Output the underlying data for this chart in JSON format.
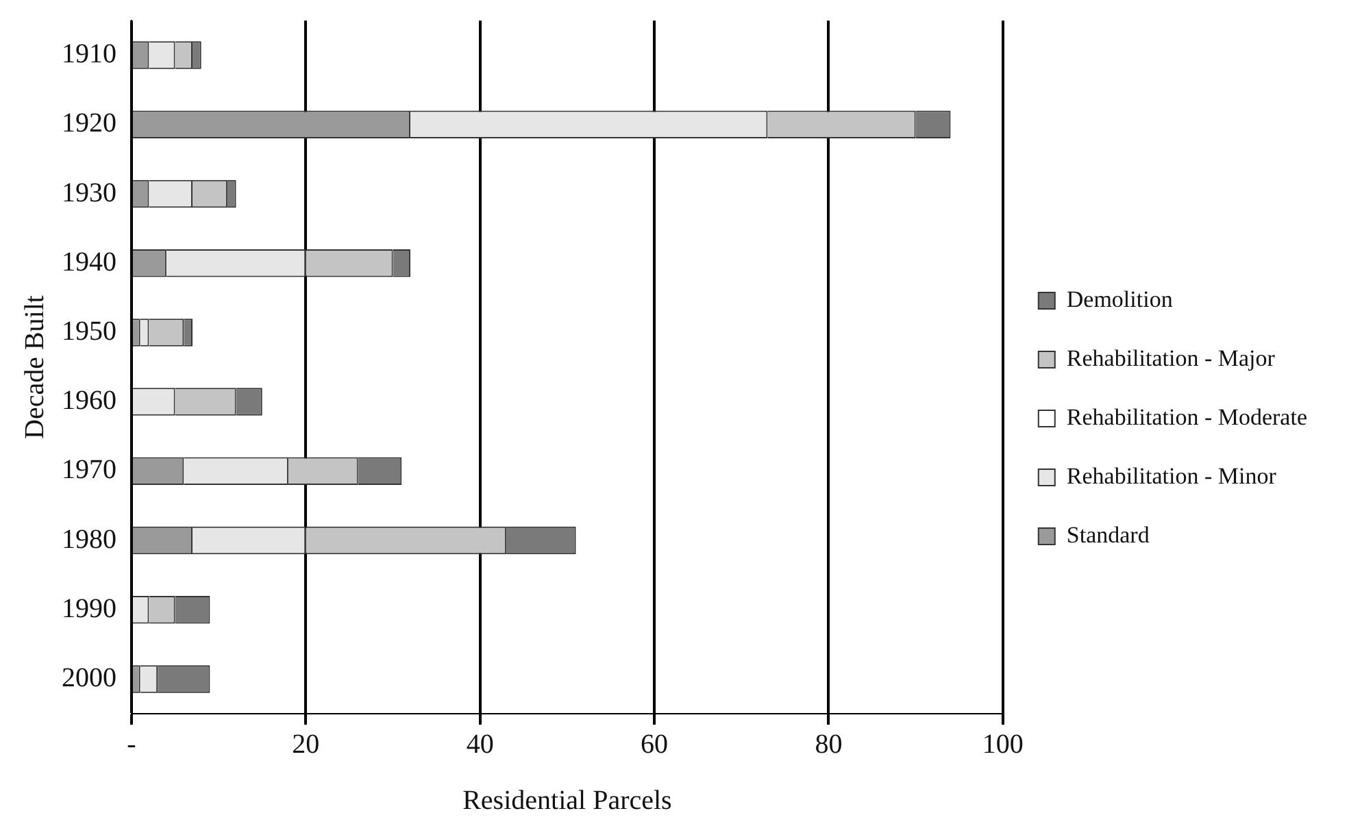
{
  "chart_data": {
    "type": "bar",
    "orientation": "horizontal",
    "stacked": true,
    "xlabel": "Residential Parcels",
    "ylabel": "Decade Built",
    "categories": [
      "1910",
      "1920",
      "1930",
      "1940",
      "1950",
      "1960",
      "1970",
      "1980",
      "1990",
      "2000"
    ],
    "series": [
      {
        "name": "Standard",
        "color": "#9a9a9a",
        "values": [
          2,
          32,
          2,
          4,
          1,
          0,
          6,
          7,
          0,
          1
        ]
      },
      {
        "name": "Rehabilitation - Minor",
        "color": "#e6e6e6",
        "values": [
          3,
          41,
          5,
          16,
          1,
          5,
          12,
          13,
          2,
          2
        ]
      },
      {
        "name": "Rehabilitation - Moderate",
        "color": "#ffffff",
        "values": [
          0,
          0,
          0,
          0,
          0,
          0,
          0,
          0,
          0,
          0
        ]
      },
      {
        "name": "Rehabilitation - Major",
        "color": "#c4c4c4",
        "values": [
          2,
          17,
          4,
          10,
          4,
          7,
          8,
          23,
          3,
          0
        ]
      },
      {
        "name": "Demolition",
        "color": "#7a7a7a",
        "values": [
          1,
          4,
          1,
          2,
          1,
          3,
          5,
          8,
          4,
          6
        ]
      }
    ],
    "xlim": [
      0,
      100
    ],
    "xticks": [
      {
        "value": 0,
        "label": "-"
      },
      20,
      40,
      60,
      80,
      100
    ],
    "grid": "x",
    "legend": "right"
  }
}
